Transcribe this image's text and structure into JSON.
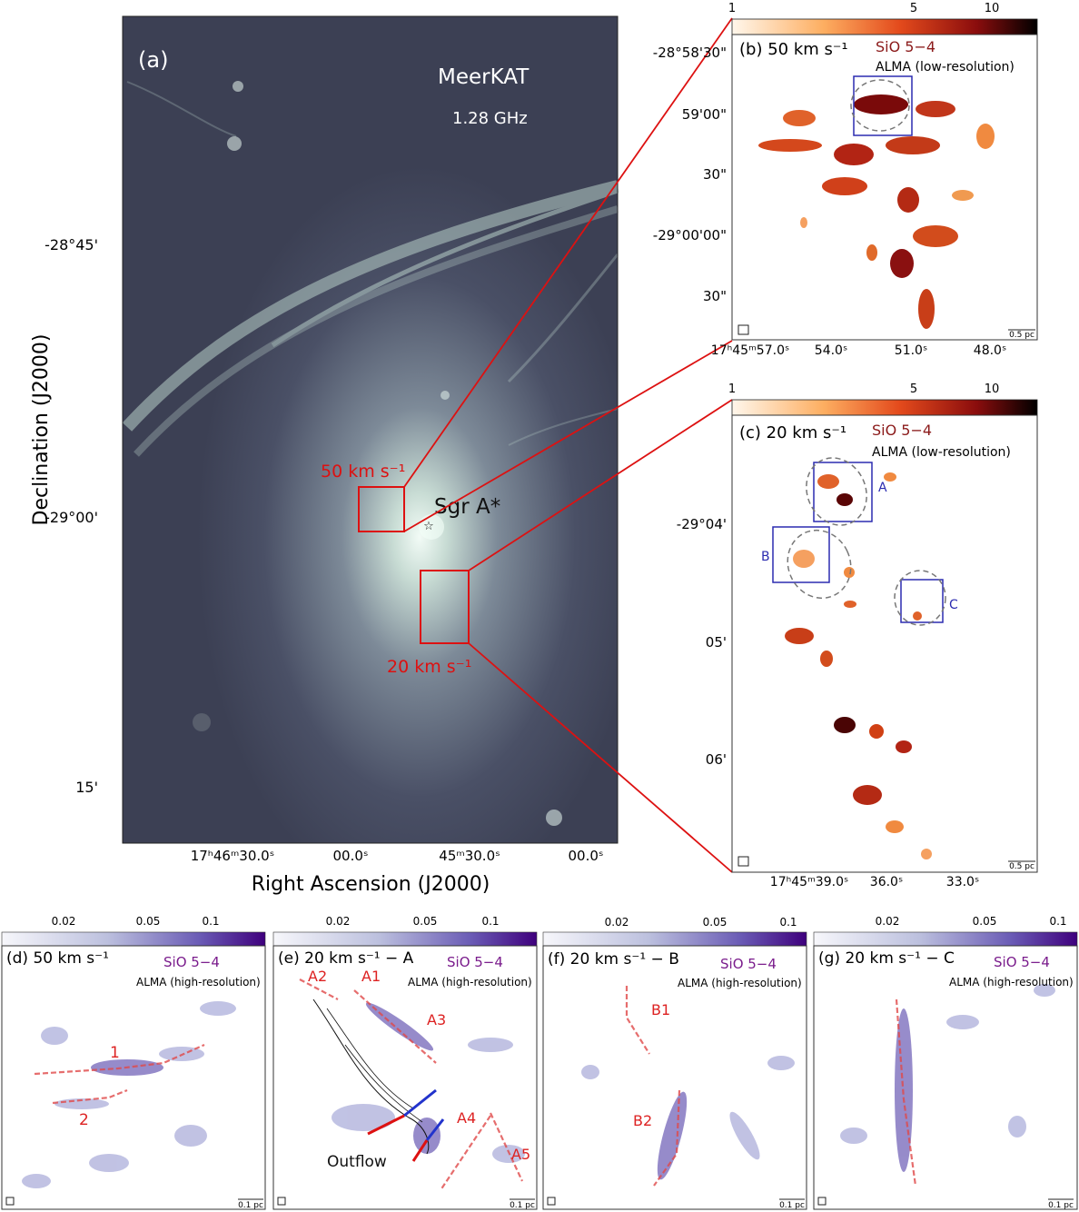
{
  "panel_a": {
    "label": "(a)",
    "telescope": "MeerKAT",
    "frequency": "1.28 GHz",
    "source": "Sgr A*",
    "box_50_label": "50 km s⁻¹",
    "box_20_label": "20 km s⁻¹",
    "ylabel": "Declination (J2000)",
    "xlabel": "Right Ascension (J2000)",
    "yticks": [
      "-28°45'",
      "-29°00'",
      "15'"
    ],
    "xticks": [
      "17ʰ46ᵐ30.0ˢ",
      "00.0ˢ",
      "45ᵐ30.0ˢ",
      "00.0ˢ"
    ]
  },
  "panel_b": {
    "label": "(b) 50 km s⁻¹",
    "line": "SiO 5−4",
    "instrument": "ALMA (low-resolution)",
    "colorbar_ticks": [
      "1",
      "5",
      "10"
    ],
    "yticks": [
      "-28°58'30\"",
      "59'00\"",
      "30\"",
      "-29°00'00\"",
      "30\""
    ],
    "xticks": [
      "17ʰ45ᵐ57.0ˢ",
      "54.0ˢ",
      "51.0ˢ",
      "48.0ˢ"
    ],
    "scalebar": "0.5 pc"
  },
  "panel_c": {
    "label": "(c) 20 km s⁻¹",
    "line": "SiO 5−4",
    "instrument": "ALMA (low-resolution)",
    "colorbar_ticks": [
      "1",
      "5",
      "10"
    ],
    "yticks": [
      "-29°04'",
      "05'",
      "06'"
    ],
    "xticks": [
      "17ʰ45ᵐ39.0ˢ",
      "36.0ˢ",
      "33.0ˢ"
    ],
    "box_labels": [
      "A",
      "B",
      "C"
    ],
    "scalebar": "0.5 pc"
  },
  "bottom_panels": [
    {
      "label": "(d) 50 km s⁻¹",
      "line": "SiO 5−4",
      "instrument": "ALMA (high-resolution)",
      "annotations": [
        "1",
        "2"
      ],
      "scalebar": "0.1 pc"
    },
    {
      "label": "(e) 20 km s⁻¹ − A",
      "line": "SiO 5−4",
      "instrument": "ALMA (high-resolution)",
      "annotations": [
        "A2",
        "A1",
        "A3",
        "A4",
        "A5",
        "Outflow"
      ],
      "scalebar": "0.1 pc"
    },
    {
      "label": "(f) 20 km s⁻¹ − B",
      "line": "SiO 5−4",
      "instrument": "ALMA (high-resolution)",
      "annotations": [
        "B1",
        "B2"
      ],
      "scalebar": "0.1 pc"
    },
    {
      "label": "(g) 20 km s⁻¹ − C",
      "line": "SiO 5−4",
      "instrument": "ALMA (high-resolution)",
      "annotations": [],
      "scalebar": "0.1 pc"
    }
  ],
  "bottom_colorbar_ticks": [
    "0.02",
    "0.05",
    "0.1"
  ],
  "colors": {
    "red_box": "#dd1111",
    "blue_box": "#2b2bb0",
    "sio_label": "#8b1a1a",
    "sio_hr_label": "#7a1c8c",
    "radio_bg": "#3f4358"
  }
}
